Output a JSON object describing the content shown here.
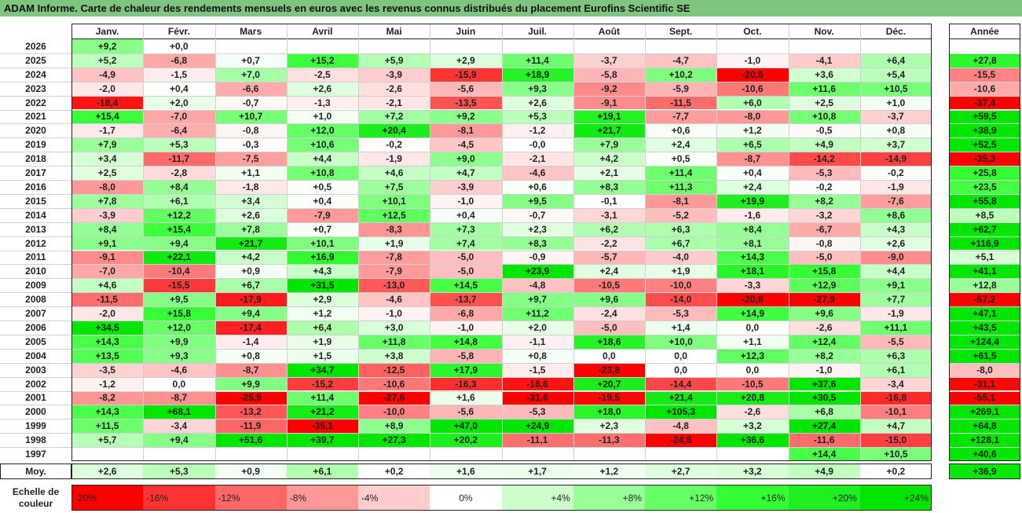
{
  "title": "ADAM Informe. Carte de chaleur des rendements mensuels en euros avec les revenus connus distribués du placement Eurofins Scientific SE",
  "chart_data": {
    "type": "heatmap",
    "months": [
      "Janv.",
      "Févr.",
      "Mars",
      "Avril",
      "Mai",
      "Juin",
      "Juil.",
      "Août",
      "Sept.",
      "Oct.",
      "Nov.",
      "Déc."
    ],
    "year_header": "Année",
    "rows": [
      {
        "year": "2026",
        "values": [
          "+9,2",
          "+0,0",
          "",
          "",
          "",
          "",
          "",
          "",
          "",
          "",
          "",
          ""
        ],
        "total": ""
      },
      {
        "year": "2025",
        "values": [
          "+5,2",
          "-6,8",
          "+0,7",
          "+15,2",
          "+5,9",
          "+2,9",
          "+11,4",
          "-3,7",
          "-4,7",
          "-1,0",
          "-4,1",
          "+6,4"
        ],
        "total": "+27,8"
      },
      {
        "year": "2024",
        "values": [
          "-4,9",
          "-1,5",
          "+7,0",
          "-2,5",
          "-3,9",
          "-15,9",
          "+18,9",
          "-5,8",
          "+10,2",
          "-20,6",
          "+3,6",
          "+5,4"
        ],
        "total": "-15,5"
      },
      {
        "year": "2023",
        "values": [
          "-2,0",
          "+0,4",
          "-6,6",
          "+2,6",
          "-2,6",
          "-5,6",
          "+9,3",
          "-9,2",
          "-5,9",
          "-10,6",
          "+11,6",
          "+10,5"
        ],
        "total": "-10,6"
      },
      {
        "year": "2022",
        "values": [
          "-18,4",
          "+2,0",
          "-0,7",
          "-1,3",
          "-2,1",
          "-13,5",
          "+2,6",
          "-9,1",
          "-11,5",
          "+6,0",
          "+2,5",
          "+1,0"
        ],
        "total": "-37,4"
      },
      {
        "year": "2021",
        "values": [
          "+15,4",
          "-7,0",
          "+10,7",
          "+1,0",
          "+7,2",
          "+9,2",
          "+5,3",
          "+19,1",
          "-7,7",
          "-8,0",
          "+10,8",
          "-3,7"
        ],
        "total": "+59,5"
      },
      {
        "year": "2020",
        "values": [
          "-1,7",
          "-6,4",
          "-0,8",
          "+12,0",
          "+20,4",
          "-8,1",
          "-1,2",
          "+21,7",
          "+0,6",
          "+1,2",
          "-0,5",
          "+0,8"
        ],
        "total": "+38,9"
      },
      {
        "year": "2019",
        "values": [
          "+7,9",
          "+5,3",
          "-0,3",
          "+10,6",
          "-0,2",
          "-4,5",
          "-0,0",
          "+7,9",
          "+2,4",
          "+6,5",
          "+4,9",
          "+3,7"
        ],
        "total": "+52,5"
      },
      {
        "year": "2018",
        "values": [
          "+3,4",
          "-11,7",
          "-7,5",
          "+4,4",
          "-1,9",
          "+9,0",
          "-2,1",
          "+4,2",
          "+0,5",
          "-8,7",
          "-14,2",
          "-14,9"
        ],
        "total": "-35,3"
      },
      {
        "year": "2017",
        "values": [
          "+2,5",
          "-2,8",
          "+1,1",
          "+10,8",
          "+4,6",
          "+4,7",
          "-4,6",
          "+2,1",
          "+11,4",
          "+0,4",
          "-5,3",
          "-0,2"
        ],
        "total": "+25,8"
      },
      {
        "year": "2016",
        "values": [
          "-8,0",
          "+8,4",
          "-1,8",
          "+0,5",
          "+7,5",
          "-3,9",
          "+0,6",
          "+8,3",
          "+11,3",
          "+2,4",
          "-0,2",
          "-1,9"
        ],
        "total": "+23,5"
      },
      {
        "year": "2015",
        "values": [
          "+7,8",
          "+6,1",
          "+3,4",
          "+0,4",
          "+10,1",
          "-1,0",
          "+9,5",
          "-0,1",
          "-8,1",
          "+19,9",
          "+8,2",
          "-7,6"
        ],
        "total": "+55,8"
      },
      {
        "year": "2014",
        "values": [
          "-3,9",
          "+12,2",
          "+2,6",
          "-7,9",
          "+12,5",
          "+0,4",
          "-0,7",
          "-3,1",
          "-5,2",
          "-1,6",
          "-3,2",
          "+8,6"
        ],
        "total": "+8,5"
      },
      {
        "year": "2013",
        "values": [
          "+8,4",
          "+15,4",
          "+7,8",
          "+0,7",
          "-8,3",
          "+7,3",
          "+2,3",
          "+6,2",
          "+6,3",
          "+8,4",
          "-6,7",
          "+4,3"
        ],
        "total": "+62,7"
      },
      {
        "year": "2012",
        "values": [
          "+9,1",
          "+9,4",
          "+21,7",
          "+10,1",
          "+1,9",
          "+7,4",
          "+8,3",
          "-2,2",
          "+6,7",
          "+8,1",
          "-0,8",
          "+2,6"
        ],
        "total": "+116,9"
      },
      {
        "year": "2011",
        "values": [
          "-9,1",
          "+22,1",
          "+4,2",
          "+16,9",
          "-7,8",
          "-5,0",
          "-0,9",
          "-5,7",
          "-4,0",
          "+14,3",
          "-5,0",
          "-9,0"
        ],
        "total": "+5,1"
      },
      {
        "year": "2010",
        "values": [
          "-7,0",
          "-10,4",
          "+0,9",
          "+4,3",
          "-7,9",
          "-5,0",
          "+23,9",
          "+2,4",
          "+1,9",
          "+18,1",
          "+15,8",
          "+4,4"
        ],
        "total": "+41,1"
      },
      {
        "year": "2009",
        "values": [
          "+4,6",
          "-15,5",
          "+6,7",
          "+31,5",
          "-13,0",
          "+14,5",
          "-4,8",
          "-10,5",
          "-10,0",
          "-3,3",
          "+12,9",
          "+9,1"
        ],
        "total": "+12,8"
      },
      {
        "year": "2008",
        "values": [
          "-11,5",
          "+9,5",
          "-17,9",
          "+2,9",
          "-4,6",
          "-13,7",
          "+9,7",
          "+9,6",
          "-14,0",
          "-20,8",
          "-27,9",
          "+7,7"
        ],
        "total": "-57,2"
      },
      {
        "year": "2007",
        "values": [
          "-2,0",
          "+15,8",
          "+9,4",
          "+1,2",
          "-1,0",
          "-6,8",
          "+11,2",
          "-2,4",
          "-5,3",
          "+14,9",
          "+9,6",
          "-1,9"
        ],
        "total": "+47,1"
      },
      {
        "year": "2006",
        "values": [
          "+34,5",
          "+12,0",
          "-17,4",
          "+6,4",
          "+3,0",
          "-1,0",
          "+2,0",
          "-5,0",
          "+1,4",
          "0,0",
          "-2,6",
          "+11,1"
        ],
        "total": "+43,5"
      },
      {
        "year": "2005",
        "values": [
          "+14,3",
          "+9,9",
          "-1,4",
          "+1,9",
          "+11,8",
          "+14,8",
          "-1,1",
          "+18,6",
          "+10,0",
          "+1,1",
          "+12,4",
          "-5,5"
        ],
        "total": "+124,4"
      },
      {
        "year": "2004",
        "values": [
          "+13,5",
          "+9,3",
          "+0,8",
          "+1,5",
          "+3,8",
          "-5,8",
          "+0,8",
          "0,0",
          "0,0",
          "+12,3",
          "+8,2",
          "+6,3"
        ],
        "total": "+61,5"
      },
      {
        "year": "2003",
        "values": [
          "-3,5",
          "-4,6",
          "-8,7",
          "+34,7",
          "-12,5",
          "+17,9",
          "-1,5",
          "-23,8",
          "0,0",
          "0,0",
          "-1,0",
          "+6,1"
        ],
        "total": "-8,0"
      },
      {
        "year": "2002",
        "values": [
          "-1,2",
          "0,0",
          "+9,9",
          "-15,2",
          "-10,6",
          "-16,3",
          "-18,6",
          "+20,7",
          "-14,4",
          "-10,5",
          "+37,6",
          "-3,4"
        ],
        "total": "-31,1"
      },
      {
        "year": "2001",
        "values": [
          "-8,2",
          "-8,7",
          "-25,5",
          "+11,4",
          "-27,6",
          "+1,6",
          "-31,6",
          "-19,5",
          "+21,4",
          "+20,8",
          "+30,5",
          "-16,8"
        ],
        "total": "-55,1"
      },
      {
        "year": "2000",
        "values": [
          "+14,3",
          "+68,1",
          "-13,2",
          "+21,2",
          "-10,0",
          "-5,6",
          "-5,3",
          "+18,0",
          "+105,3",
          "-2,6",
          "+6,8",
          "-10,1"
        ],
        "total": "+269,1"
      },
      {
        "year": "1999",
        "values": [
          "+11,5",
          "-3,4",
          "-11,9",
          "-35,1",
          "+8,9",
          "+47,0",
          "+24,9",
          "+2,3",
          "-4,8",
          "+3,2",
          "+27,4",
          "+4,7"
        ],
        "total": "+64,8"
      },
      {
        "year": "1998",
        "values": [
          "+5,7",
          "+9,4",
          "+51,6",
          "+39,7",
          "+27,3",
          "+20,2",
          "-11,1",
          "-11,3",
          "-24,8",
          "+36,6",
          "-11,6",
          "-15,0"
        ],
        "total": "+128,1"
      },
      {
        "year": "1997",
        "values": [
          "",
          "",
          "",
          "",
          "",
          "",
          "",
          "",
          "",
          "",
          "+14,4",
          "+10,5"
        ],
        "total": "+40,6"
      }
    ],
    "average": {
      "label": "Moy.",
      "values": [
        "+2,6",
        "+5,3",
        "+0,9",
        "+6,1",
        "+0,2",
        "+1,6",
        "+1,7",
        "+1,2",
        "+2,7",
        "+3,2",
        "+4,9",
        "+0,2"
      ],
      "total": "+36,9"
    },
    "color_scale": {
      "label_line1": "Echelle de",
      "label_line2": "couleur",
      "stops": [
        {
          "label": "-20%",
          "value": -20,
          "color": "#ff0000"
        },
        {
          "label": "-16%",
          "value": -16,
          "color": "#ff3333"
        },
        {
          "label": "-12%",
          "value": -12,
          "color": "#ff6666"
        },
        {
          "label": "-8%",
          "value": -8,
          "color": "#ff9999"
        },
        {
          "label": "-4%",
          "value": -4,
          "color": "#ffcccc"
        },
        {
          "label": "0%",
          "value": 0,
          "color": "#ffffff"
        },
        {
          "label": "+4%",
          "value": 4,
          "color": "#ccffcc"
        },
        {
          "label": "+8%",
          "value": 8,
          "color": "#99ff99"
        },
        {
          "label": "+12%",
          "value": 12,
          "color": "#66ff66"
        },
        {
          "label": "+16%",
          "value": 16,
          "color": "#33ff33"
        },
        {
          "label": "+20%",
          "value": 20,
          "color": "#1fee1f"
        },
        {
          "label": "+24%",
          "value": 24,
          "color": "#00e600"
        }
      ]
    },
    "colors": {
      "title_bar": "#7fc57f",
      "negative_max": "#ff0000",
      "positive_max": "#00e600"
    }
  }
}
